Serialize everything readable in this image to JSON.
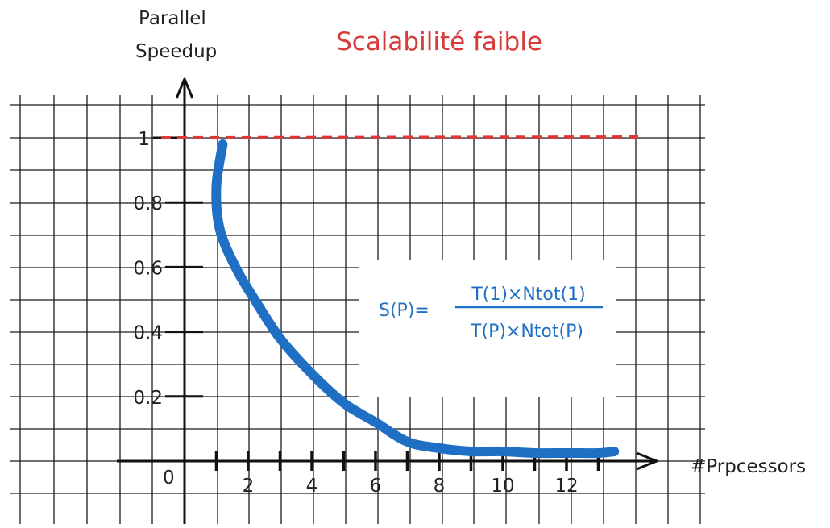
{
  "chart_data": {
    "type": "line",
    "title": "Scalabilité faible",
    "ylabel": [
      "Parallel",
      "Speedup"
    ],
    "xlabel": "#Prpcessors",
    "origin_label": "0",
    "xlim": [
      0,
      14
    ],
    "ylim": [
      0,
      1.1
    ],
    "x_ticks": [
      2,
      4,
      6,
      8,
      10,
      12
    ],
    "y_ticks": [
      0.2,
      0.4,
      0.6,
      0.8
    ],
    "y_ticks_labels": [
      "0.2",
      "0.4",
      "0.6",
      "0.8"
    ],
    "reference_line": {
      "y": 1,
      "label": "1",
      "style": "dashed"
    },
    "grid": true,
    "series": [
      {
        "x": [
          1.2,
          1.0,
          1.1,
          1.6,
          2.2,
          3.0,
          4.0,
          5.0,
          6.0,
          7.0,
          8.0,
          9.0,
          10.0,
          11.0,
          12.0,
          13.0,
          13.5
        ],
        "values": [
          0.98,
          0.85,
          0.72,
          0.6,
          0.5,
          0.38,
          0.27,
          0.18,
          0.12,
          0.06,
          0.04,
          0.03,
          0.03,
          0.025,
          0.025,
          0.025,
          0.03
        ]
      }
    ],
    "annotation": {
      "lhs": "S(P)=",
      "numerator": "T(1)×Ntot(1)",
      "denominator": "T(P)×Ntot(P)"
    },
    "colors": {
      "title": "#d93a3a",
      "reference": "#d93a3a",
      "curve": "#1f6fc4",
      "formula": "#1f6fc4",
      "axis": "#111111",
      "grid": "#1a1a1a"
    }
  }
}
